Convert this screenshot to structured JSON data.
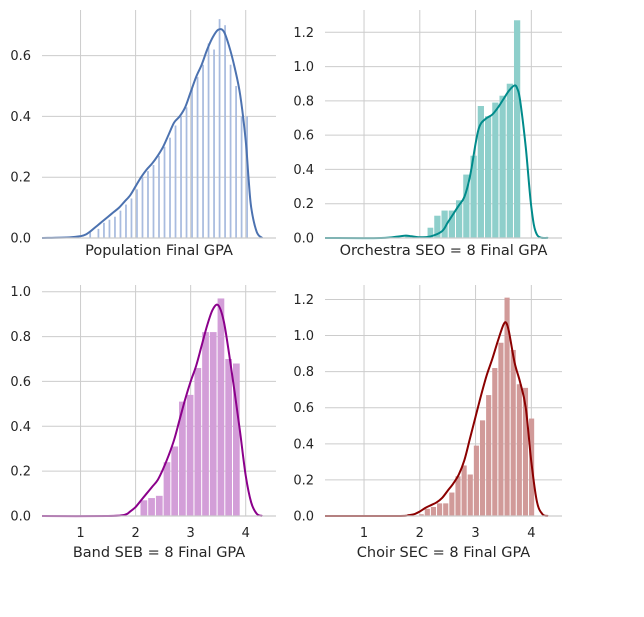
{
  "colors": {
    "background": "#ffffff",
    "grid": "#cccccc",
    "text": "#262626"
  },
  "chart_data": [
    {
      "type": "bar",
      "subtype": "histogram-with-kde",
      "xlabel": "Population Final GPA",
      "xlim": [
        0.3,
        4.55
      ],
      "ylim": [
        0,
        0.75
      ],
      "yticks": [
        0.0,
        0.2,
        0.4,
        0.6
      ],
      "yticklabels": [
        "0.0",
        "0.2",
        "0.4",
        "0.6"
      ],
      "xticks": [
        1,
        2,
        3,
        4
      ],
      "xticklabels": [],
      "grid": true,
      "bar_color": "#a9bcdf",
      "line_color": "#4c72b0",
      "bars": [
        {
          "x0": 1.15,
          "x1": 1.2,
          "value": 0.02
        },
        {
          "x0": 1.3,
          "x1": 1.35,
          "value": 0.03
        },
        {
          "x0": 1.4,
          "x1": 1.45,
          "value": 0.05
        },
        {
          "x0": 1.5,
          "x1": 1.55,
          "value": 0.06
        },
        {
          "x0": 1.6,
          "x1": 1.65,
          "value": 0.07
        },
        {
          "x0": 1.7,
          "x1": 1.75,
          "value": 0.09
        },
        {
          "x0": 1.8,
          "x1": 1.85,
          "value": 0.11
        },
        {
          "x0": 1.9,
          "x1": 1.95,
          "value": 0.13
        },
        {
          "x0": 2.0,
          "x1": 2.05,
          "value": 0.16
        },
        {
          "x0": 2.1,
          "x1": 2.15,
          "value": 0.2
        },
        {
          "x0": 2.2,
          "x1": 2.25,
          "value": 0.22
        },
        {
          "x0": 2.3,
          "x1": 2.35,
          "value": 0.24
        },
        {
          "x0": 2.4,
          "x1": 2.45,
          "value": 0.27
        },
        {
          "x0": 2.5,
          "x1": 2.55,
          "value": 0.3
        },
        {
          "x0": 2.6,
          "x1": 2.65,
          "value": 0.33
        },
        {
          "x0": 2.7,
          "x1": 2.75,
          "value": 0.37
        },
        {
          "x0": 2.8,
          "x1": 2.85,
          "value": 0.4
        },
        {
          "x0": 2.9,
          "x1": 2.95,
          "value": 0.43
        },
        {
          "x0": 3.0,
          "x1": 3.05,
          "value": 0.49
        },
        {
          "x0": 3.1,
          "x1": 3.15,
          "value": 0.53
        },
        {
          "x0": 3.2,
          "x1": 3.25,
          "value": 0.57
        },
        {
          "x0": 3.3,
          "x1": 3.35,
          "value": 0.64
        },
        {
          "x0": 3.4,
          "x1": 3.45,
          "value": 0.62
        },
        {
          "x0": 3.5,
          "x1": 3.55,
          "value": 0.72
        },
        {
          "x0": 3.6,
          "x1": 3.65,
          "value": 0.7
        },
        {
          "x0": 3.7,
          "x1": 3.75,
          "value": 0.57
        },
        {
          "x0": 3.8,
          "x1": 3.85,
          "value": 0.5
        },
        {
          "x0": 3.9,
          "x1": 3.95,
          "value": 0.4
        },
        {
          "x0": 4.0,
          "x1": 4.05,
          "value": 0.4
        }
      ],
      "kde": {
        "x": [
          0.3,
          0.8,
          1.0,
          1.1,
          1.2,
          1.3,
          1.4,
          1.5,
          1.6,
          1.7,
          1.8,
          1.9,
          2.0,
          2.1,
          2.2,
          2.3,
          2.4,
          2.5,
          2.6,
          2.7,
          2.8,
          2.9,
          3.0,
          3.1,
          3.2,
          3.3,
          3.4,
          3.5,
          3.6,
          3.7,
          3.8,
          3.9,
          4.0,
          4.05,
          4.1,
          4.2,
          4.3
        ],
        "y": [
          0.0,
          0.002,
          0.006,
          0.012,
          0.025,
          0.04,
          0.055,
          0.07,
          0.085,
          0.1,
          0.12,
          0.14,
          0.17,
          0.2,
          0.225,
          0.245,
          0.27,
          0.3,
          0.34,
          0.38,
          0.4,
          0.43,
          0.48,
          0.53,
          0.57,
          0.62,
          0.66,
          0.685,
          0.68,
          0.63,
          0.56,
          0.47,
          0.32,
          0.2,
          0.1,
          0.02,
          0.0
        ]
      }
    },
    {
      "type": "bar",
      "subtype": "histogram-with-kde",
      "xlabel": "Orchestra SEO = 8 Final GPA",
      "xlim": [
        0.3,
        4.55
      ],
      "ylim": [
        0,
        1.33
      ],
      "yticks": [
        0.0,
        0.2,
        0.4,
        0.6,
        0.8,
        1.0,
        1.2
      ],
      "yticklabels": [
        "0.0",
        "0.2",
        "0.4",
        "0.6",
        "0.8",
        "1.0",
        "1.2"
      ],
      "xticks": [
        1,
        2,
        3,
        4
      ],
      "xticklabels": [],
      "grid": true,
      "bar_color": "#8ecfcb",
      "line_color": "#008b8b",
      "bars": [
        {
          "x0": 1.73,
          "x1": 1.86,
          "value": 0.01
        },
        {
          "x0": 2.13,
          "x1": 2.25,
          "value": 0.06
        },
        {
          "x0": 2.25,
          "x1": 2.38,
          "value": 0.13
        },
        {
          "x0": 2.38,
          "x1": 2.51,
          "value": 0.16
        },
        {
          "x0": 2.51,
          "x1": 2.64,
          "value": 0.16
        },
        {
          "x0": 2.64,
          "x1": 2.77,
          "value": 0.22
        },
        {
          "x0": 2.77,
          "x1": 2.9,
          "value": 0.37
        },
        {
          "x0": 2.9,
          "x1": 3.03,
          "value": 0.48
        },
        {
          "x0": 3.03,
          "x1": 3.16,
          "value": 0.77
        },
        {
          "x0": 3.16,
          "x1": 3.29,
          "value": 0.71
        },
        {
          "x0": 3.29,
          "x1": 3.42,
          "value": 0.79
        },
        {
          "x0": 3.42,
          "x1": 3.55,
          "value": 0.83
        },
        {
          "x0": 3.55,
          "x1": 3.68,
          "value": 0.9
        },
        {
          "x0": 3.68,
          "x1": 3.81,
          "value": 1.27
        }
      ],
      "kde": {
        "x": [
          0.3,
          1.3,
          1.6,
          1.75,
          1.85,
          2.0,
          2.2,
          2.4,
          2.5,
          2.6,
          2.7,
          2.8,
          2.9,
          3.0,
          3.05,
          3.1,
          3.2,
          3.3,
          3.4,
          3.5,
          3.6,
          3.7,
          3.75,
          3.8,
          3.9,
          4.0,
          4.1,
          4.3
        ],
        "y": [
          0.0,
          0.0,
          0.008,
          0.014,
          0.01,
          0.004,
          0.01,
          0.04,
          0.09,
          0.14,
          0.19,
          0.24,
          0.36,
          0.55,
          0.63,
          0.67,
          0.7,
          0.72,
          0.76,
          0.81,
          0.86,
          0.89,
          0.87,
          0.8,
          0.53,
          0.18,
          0.02,
          0.0
        ]
      }
    },
    {
      "type": "bar",
      "subtype": "histogram-with-kde",
      "xlabel": "Band SEB = 8 Final GPA",
      "xlim": [
        0.3,
        4.55
      ],
      "ylim": [
        0,
        1.03
      ],
      "yticks": [
        0.0,
        0.2,
        0.4,
        0.6,
        0.8,
        1.0
      ],
      "yticklabels": [
        "0.0",
        "0.2",
        "0.4",
        "0.6",
        "0.8",
        "1.0"
      ],
      "xticks": [
        1,
        2,
        3,
        4
      ],
      "xticklabels": [
        "1",
        "2",
        "3",
        "4"
      ],
      "grid": true,
      "bar_color": "#d39ed8",
      "line_color": "#8b008b",
      "bars": [
        {
          "x0": 2.08,
          "x1": 2.22,
          "value": 0.07
        },
        {
          "x0": 2.22,
          "x1": 2.36,
          "value": 0.08
        },
        {
          "x0": 2.36,
          "x1": 2.5,
          "value": 0.09
        },
        {
          "x0": 2.5,
          "x1": 2.64,
          "value": 0.24
        },
        {
          "x0": 2.64,
          "x1": 2.78,
          "value": 0.31
        },
        {
          "x0": 2.78,
          "x1": 2.92,
          "value": 0.51
        },
        {
          "x0": 2.92,
          "x1": 3.06,
          "value": 0.54
        },
        {
          "x0": 3.06,
          "x1": 3.2,
          "value": 0.66
        },
        {
          "x0": 3.2,
          "x1": 3.34,
          "value": 0.82
        },
        {
          "x0": 3.34,
          "x1": 3.48,
          "value": 0.82
        },
        {
          "x0": 3.48,
          "x1": 3.62,
          "value": 0.97
        },
        {
          "x0": 3.62,
          "x1": 3.76,
          "value": 0.7
        },
        {
          "x0": 3.76,
          "x1": 3.9,
          "value": 0.68
        }
      ],
      "kde": {
        "x": [
          0.3,
          1.5,
          1.8,
          1.9,
          2.0,
          2.1,
          2.2,
          2.3,
          2.4,
          2.5,
          2.6,
          2.7,
          2.8,
          2.9,
          3.0,
          3.1,
          3.2,
          3.3,
          3.4,
          3.5,
          3.6,
          3.7,
          3.8,
          3.9,
          4.0,
          4.1,
          4.2,
          4.3
        ],
        "y": [
          0.0,
          0.0,
          0.005,
          0.02,
          0.04,
          0.07,
          0.1,
          0.13,
          0.16,
          0.21,
          0.27,
          0.34,
          0.43,
          0.52,
          0.6,
          0.67,
          0.76,
          0.85,
          0.92,
          0.94,
          0.87,
          0.72,
          0.55,
          0.37,
          0.18,
          0.06,
          0.01,
          0.0
        ]
      }
    },
    {
      "type": "bar",
      "subtype": "histogram-with-kde",
      "xlabel": "Choir SEC = 8 Final GPA",
      "xlim": [
        0.3,
        4.55
      ],
      "ylim": [
        0,
        1.28
      ],
      "yticks": [
        0.0,
        0.2,
        0.4,
        0.6,
        0.8,
        1.0,
        1.2
      ],
      "yticklabels": [
        "0.0",
        "0.2",
        "0.4",
        "0.6",
        "0.8",
        "1.0",
        "1.2"
      ],
      "xticks": [
        1,
        2,
        3,
        4
      ],
      "xticklabels": [
        "1",
        "2",
        "3",
        "4"
      ],
      "grid": true,
      "bar_color": "#d19a99",
      "line_color": "#8b0000",
      "bars": [
        {
          "x0": 1.98,
          "x1": 2.08,
          "value": 0.01
        },
        {
          "x0": 2.08,
          "x1": 2.19,
          "value": 0.04
        },
        {
          "x0": 2.19,
          "x1": 2.3,
          "value": 0.05
        },
        {
          "x0": 2.3,
          "x1": 2.41,
          "value": 0.07
        },
        {
          "x0": 2.41,
          "x1": 2.52,
          "value": 0.07
        },
        {
          "x0": 2.52,
          "x1": 2.63,
          "value": 0.13
        },
        {
          "x0": 2.63,
          "x1": 2.74,
          "value": 0.22
        },
        {
          "x0": 2.74,
          "x1": 2.85,
          "value": 0.28
        },
        {
          "x0": 2.85,
          "x1": 2.96,
          "value": 0.23
        },
        {
          "x0": 2.96,
          "x1": 3.07,
          "value": 0.39
        },
        {
          "x0": 3.07,
          "x1": 3.18,
          "value": 0.53
        },
        {
          "x0": 3.18,
          "x1": 3.29,
          "value": 0.67
        },
        {
          "x0": 3.29,
          "x1": 3.4,
          "value": 0.82
        },
        {
          "x0": 3.4,
          "x1": 3.51,
          "value": 0.96
        },
        {
          "x0": 3.51,
          "x1": 3.62,
          "value": 1.21
        },
        {
          "x0": 3.62,
          "x1": 3.73,
          "value": 0.92
        },
        {
          "x0": 3.73,
          "x1": 3.84,
          "value": 0.73
        },
        {
          "x0": 3.84,
          "x1": 3.95,
          "value": 0.71
        },
        {
          "x0": 3.95,
          "x1": 4.06,
          "value": 0.54
        }
      ],
      "kde": {
        "x": [
          0.3,
          1.6,
          1.8,
          1.9,
          2.0,
          2.1,
          2.2,
          2.3,
          2.4,
          2.5,
          2.6,
          2.7,
          2.8,
          2.9,
          3.0,
          3.1,
          3.2,
          3.3,
          3.4,
          3.5,
          3.55,
          3.6,
          3.7,
          3.8,
          3.9,
          4.0,
          4.1,
          4.2,
          4.3
        ],
        "y": [
          0.0,
          0.0,
          0.005,
          0.01,
          0.025,
          0.045,
          0.06,
          0.075,
          0.1,
          0.14,
          0.18,
          0.23,
          0.31,
          0.43,
          0.55,
          0.67,
          0.78,
          0.87,
          0.97,
          1.06,
          1.07,
          1.02,
          0.85,
          0.74,
          0.6,
          0.3,
          0.08,
          0.01,
          0.0
        ]
      }
    }
  ]
}
